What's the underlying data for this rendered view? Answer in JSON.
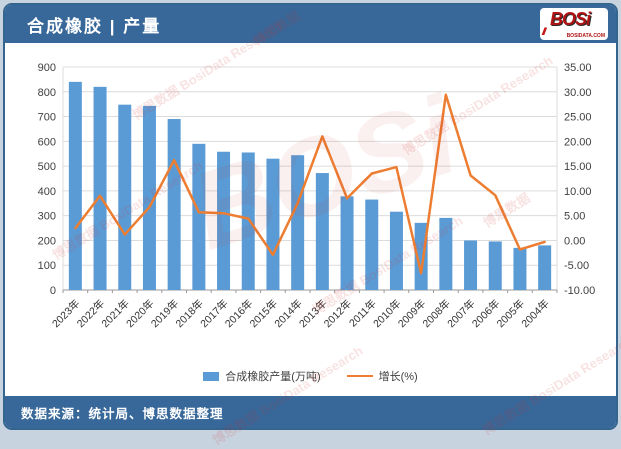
{
  "header": {
    "title": "合成橡胶 | 产量",
    "logo": {
      "text": "BOSi",
      "hatch": "///",
      "subtext": "BOSIDATA.COM"
    }
  },
  "footer": {
    "source": "数据来源：统计局、博思数据整理"
  },
  "watermark": {
    "full": "博思数据 BosiData Research",
    "short": "博思数据",
    "big": "BOSi"
  },
  "colors": {
    "header_bg": "#376899",
    "bar": "#5b9bd5",
    "line": "#ed7d31",
    "grid": "#dcdcdc",
    "baseline": "#9a9a9a",
    "axis_text": "#404040",
    "logo_red": "#b01313"
  },
  "legend": [
    {
      "label": "合成橡胶产量(万吨)",
      "type": "bar"
    },
    {
      "label": "增长(%)",
      "type": "line"
    }
  ],
  "chart_data": {
    "type": "bar+line",
    "title": "合成橡胶 | 产量",
    "categories": [
      "2023年",
      "2022年",
      "2021年",
      "2020年",
      "2019年",
      "2018年",
      "2017年",
      "2016年",
      "2015年",
      "2014年",
      "2013年",
      "2012年",
      "2011年",
      "2010年",
      "2009年",
      "2008年",
      "2007年",
      "2006年",
      "2005年",
      "2004年"
    ],
    "series": [
      {
        "name": "合成橡胶产量(万吨)",
        "type": "bar",
        "axis": "left",
        "values": [
          840,
          820,
          748,
          743,
          690,
          590,
          558,
          555,
          530,
          544,
          472,
          378,
          365,
          316,
          271,
          291,
          200,
          196,
          170,
          180
        ]
      },
      {
        "name": "增长(%)",
        "type": "line",
        "axis": "right",
        "values": [
          2.5,
          9.0,
          1.2,
          6.7,
          16.2,
          5.7,
          5.5,
          4.4,
          -2.9,
          7.5,
          21.0,
          8.5,
          13.5,
          14.8,
          -6.6,
          29.4,
          13.1,
          9.1,
          -1.8,
          -0.3
        ]
      }
    ],
    "left_axis": {
      "min": 0,
      "max": 900,
      "step": 100,
      "ticks": [
        "900",
        "800",
        "700",
        "600",
        "500",
        "400",
        "300",
        "200",
        "100",
        "0"
      ]
    },
    "right_axis": {
      "min": -10,
      "max": 35,
      "step": 5,
      "ticks": [
        "35.00",
        "30.00",
        "25.00",
        "20.00",
        "15.00",
        "10.00",
        "5.00",
        "0.00",
        "-5.00",
        "-10.00"
      ]
    },
    "grid": true,
    "legend_position": "bottom"
  }
}
